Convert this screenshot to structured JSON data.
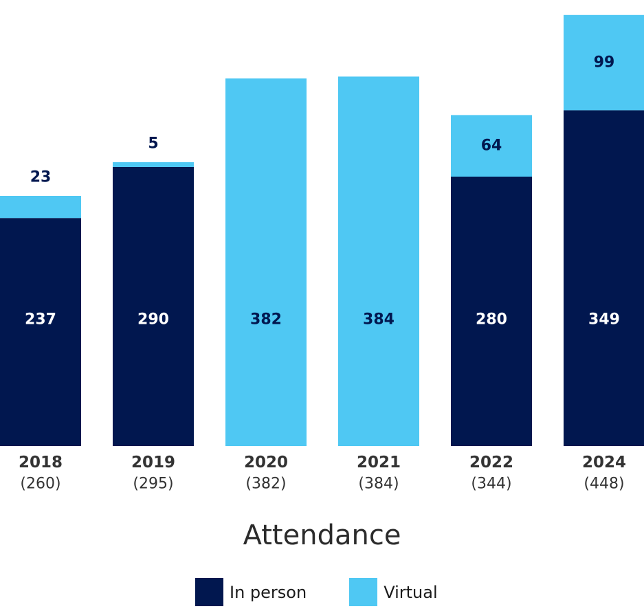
{
  "chart_data": {
    "type": "bar",
    "stacked": true,
    "title": "Attendance",
    "categories": [
      "2018",
      "2019",
      "2020",
      "2021",
      "2022",
      "2024"
    ],
    "category_totals": [
      "(260)",
      "(295)",
      "(382)",
      "(384)",
      "(344)",
      "(448)"
    ],
    "series": [
      {
        "name": "In person",
        "values": [
          237,
          290,
          0,
          0,
          280,
          349
        ],
        "labels": [
          "237",
          "290",
          "",
          "",
          "280",
          "349"
        ]
      },
      {
        "name": "Virtual",
        "values": [
          23,
          5,
          382,
          384,
          64,
          99
        ],
        "labels": [
          "23",
          "5",
          "382",
          "384",
          "64",
          "99"
        ]
      }
    ],
    "legend_position": "bottom-center",
    "grid": false
  },
  "colors": {
    "in_person": "#01174f",
    "virtual": "#4fc8f3",
    "label_on_dark": "#ffffff",
    "label_on_light": "#01174f",
    "axis_text": "#333333"
  },
  "legend": {
    "in_person_label": "In person",
    "virtual_label": "Virtual"
  }
}
